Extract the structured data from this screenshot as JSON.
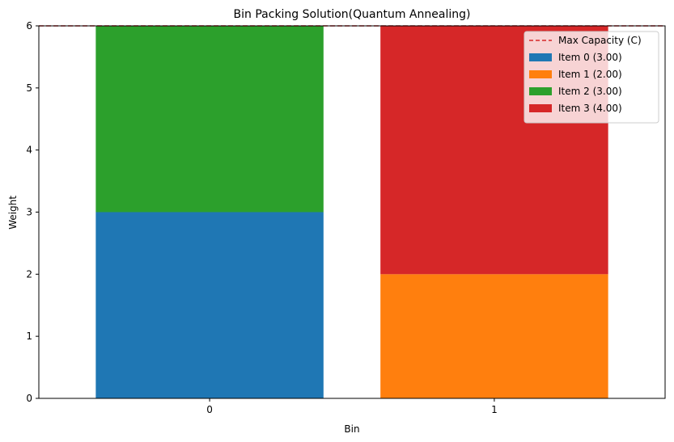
{
  "chart_data": {
    "type": "bar",
    "stacked": true,
    "title": "Bin Packing Solution(Quantum Annealing)",
    "xlabel": "Bin",
    "ylabel": "Weight",
    "categories": [
      "0",
      "1"
    ],
    "ylim": [
      0,
      6
    ],
    "yticks": [
      "0",
      "1",
      "2",
      "3",
      "4",
      "5",
      "6"
    ],
    "grid": false,
    "legend_position": "top-right",
    "series": [
      {
        "name": "Item 0 (3.00)",
        "values": [
          3,
          0
        ],
        "color": "#1f77b4"
      },
      {
        "name": "Item 1 (2.00)",
        "values": [
          0,
          2
        ],
        "color": "#ff7f0e"
      },
      {
        "name": "Item 2 (3.00)",
        "values": [
          3,
          0
        ],
        "color": "#2ca02c"
      },
      {
        "name": "Item 3 (4.00)",
        "values": [
          0,
          4
        ],
        "color": "#d62728"
      }
    ],
    "capacity_line": {
      "name": "Max Capacity (C)",
      "value": 6,
      "color": "#d62728",
      "style": "dashed"
    }
  }
}
